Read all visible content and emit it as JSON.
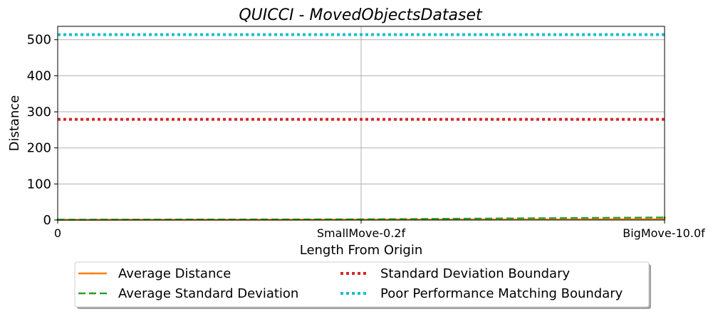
{
  "chart_data": {
    "type": "line",
    "title": "QUICCI - MovedObjectsDataset",
    "xlabel": "Length From Origin",
    "ylabel": "Distance",
    "categories": [
      "0",
      "SmallMove-0.2f",
      "BigMove-10.0f"
    ],
    "ylim": [
      0,
      537
    ],
    "yticks": [
      0,
      100,
      200,
      300,
      400,
      500
    ],
    "grid": true,
    "legend_position": "bottom",
    "series": [
      {
        "name": "Average Distance",
        "values": [
          0.5,
          1.0,
          2.0
        ],
        "color": "#ff7f0e",
        "style": "solid"
      },
      {
        "name": "Average Standard Deviation",
        "values": [
          1.0,
          2.0,
          7.0
        ],
        "color": "#2ca02c",
        "style": "dashed"
      },
      {
        "name": "Standard Deviation Boundary",
        "values": [
          279,
          279,
          279
        ],
        "color": "#d62728",
        "style": "dotted"
      },
      {
        "name": "Poor Performance Matching Boundary",
        "values": [
          514,
          514,
          514
        ],
        "color": "#17becf",
        "style": "dotted"
      }
    ]
  }
}
